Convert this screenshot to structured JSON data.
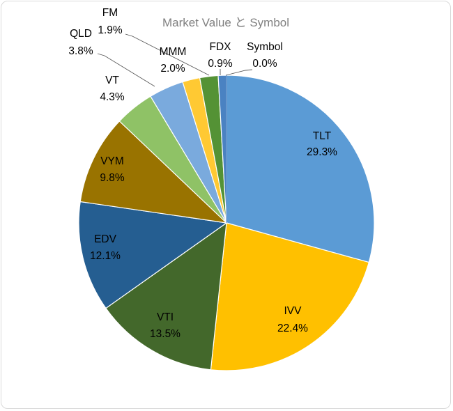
{
  "chart_data": {
    "type": "pie",
    "title": "Market Value と Symbol",
    "legend": "none",
    "categories": [
      "TLT",
      "IVV",
      "VTI",
      "EDV",
      "VYM",
      "VT",
      "QLD",
      "FM",
      "MMM",
      "FDX",
      "Symbol"
    ],
    "values": [
      29.3,
      22.4,
      13.5,
      12.1,
      9.8,
      4.3,
      3.8,
      1.9,
      2.0,
      0.9,
      0.0
    ],
    "value_labels": [
      "29.3%",
      "22.4%",
      "13.5%",
      "12.1%",
      "9.8%",
      "4.3%",
      "3.8%",
      "1.9%",
      "2.0%",
      "0.9%",
      "0.0%"
    ],
    "colors": [
      "#5b9bd5",
      "#ffc000",
      "#43682b",
      "#255e91",
      "#997300",
      "#8fc266",
      "#7aaadd",
      "#ffc933",
      "#549235",
      "#4a82c2",
      "#4a82c2"
    ]
  }
}
